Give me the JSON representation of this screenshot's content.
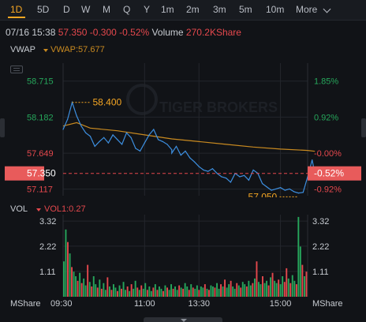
{
  "tabs": [
    "1D",
    "5D",
    "D",
    "W",
    "M",
    "Q",
    "Y",
    "1m",
    "2m",
    "3m",
    "5m",
    "10m",
    "More"
  ],
  "active_tab": "1D",
  "info": {
    "datetime": "07/16 15:38",
    "price": "57.350",
    "change": "-0.300",
    "change_pct": "-0.52%",
    "volume_label": "Volume",
    "volume_value": "270.2KShare"
  },
  "main_indicator": {
    "name": "VWAP",
    "value_label": "VWAP:57.677"
  },
  "sub_indicator": {
    "name": "VOL",
    "value_label": "VOL1:0.27"
  },
  "watermark": "TIGER BROKERS",
  "colors": {
    "up": "#26a65b",
    "down": "#e5484d",
    "price_line": "#3d8fe0",
    "vwap_line": "#c98a20",
    "accent": "#f5a623"
  },
  "chart_data": [
    {
      "type": "line",
      "title": "",
      "x_ticks": [
        "09:30",
        "11:00",
        "13:30",
        "15:00"
      ],
      "ylim": [
        57.02,
        58.98
      ],
      "left_ticks": [
        "58.715",
        "58.182",
        "57.649",
        "57.117"
      ],
      "right_ticks": [
        "1.85%",
        "0.92%",
        "-0.00%",
        "-0.92%"
      ],
      "previous_close": 57.65,
      "current_price_label": "57.350",
      "current_pct_label": "-0.52%",
      "annotations": [
        {
          "label": "58.400",
          "value": 58.4,
          "kind": "high"
        },
        {
          "label": "57.050",
          "value": 57.05,
          "kind": "low"
        }
      ],
      "series": [
        {
          "name": "Price",
          "x": [
            "09:30",
            "09:35",
            "09:40",
            "09:45",
            "09:50",
            "09:55",
            "10:00",
            "10:05",
            "10:10",
            "10:15",
            "10:20",
            "10:25",
            "10:30",
            "10:35",
            "10:40",
            "10:45",
            "10:50",
            "10:55",
            "11:00",
            "11:05",
            "11:10",
            "11:15",
            "11:20",
            "11:25",
            "11:30",
            "13:00",
            "13:05",
            "13:10",
            "13:15",
            "13:20",
            "13:25",
            "13:30",
            "13:35",
            "13:40",
            "13:45",
            "13:50",
            "13:55",
            "14:00",
            "14:05",
            "14:10",
            "14:15",
            "14:20",
            "14:25",
            "14:30",
            "14:35",
            "14:40",
            "14:45",
            "14:50",
            "14:55",
            "15:00",
            "15:05",
            "15:10",
            "15:15",
            "15:20",
            "15:25",
            "15:30",
            "15:35",
            "15:38"
          ],
          "values": [
            58.0,
            58.15,
            58.4,
            58.2,
            58.05,
            57.95,
            57.9,
            57.75,
            57.82,
            57.88,
            57.8,
            57.92,
            57.85,
            57.78,
            57.95,
            57.88,
            57.72,
            57.68,
            57.8,
            57.92,
            58.0,
            57.85,
            57.82,
            57.78,
            57.7,
            57.65,
            57.75,
            57.62,
            57.68,
            57.58,
            57.52,
            57.45,
            57.4,
            57.38,
            57.42,
            57.35,
            57.3,
            57.28,
            57.22,
            57.35,
            57.3,
            57.32,
            57.25,
            57.4,
            57.35,
            57.2,
            57.15,
            57.1,
            57.12,
            57.14,
            57.1,
            57.12,
            57.08,
            57.06,
            57.07,
            57.3,
            57.55,
            57.35
          ]
        },
        {
          "name": "VWAP",
          "x": [
            "09:30",
            "09:45",
            "10:00",
            "10:30",
            "11:00",
            "11:30",
            "13:30",
            "14:00",
            "14:30",
            "15:00",
            "15:30",
            "15:38"
          ],
          "values": [
            58.05,
            58.1,
            58.02,
            57.98,
            57.92,
            57.86,
            57.82,
            57.78,
            57.74,
            57.71,
            57.69,
            57.677
          ]
        }
      ]
    },
    {
      "type": "bar",
      "title": "",
      "ylabel": "MShare",
      "y_ticks": [
        "3.32",
        "2.22",
        "1.11"
      ],
      "ylim": [
        0,
        3.6
      ],
      "x_ticks": [
        "09:30",
        "11:00",
        "13:30",
        "15:00"
      ],
      "bars": [
        {
          "t": 0,
          "v": 1.55,
          "d": "up"
        },
        {
          "t": 1,
          "v": 2.95,
          "d": "up"
        },
        {
          "t": 2,
          "v": 2.4,
          "d": "down"
        },
        {
          "t": 3,
          "v": 1.9,
          "d": "up"
        },
        {
          "t": 4,
          "v": 1.3,
          "d": "down"
        },
        {
          "t": 5,
          "v": 1.1,
          "d": "up"
        },
        {
          "t": 6,
          "v": 0.9,
          "d": "up"
        },
        {
          "t": 7,
          "v": 0.7,
          "d": "down"
        },
        {
          "t": 8,
          "v": 1.05,
          "d": "up"
        },
        {
          "t": 9,
          "v": 0.6,
          "d": "down"
        },
        {
          "t": 10,
          "v": 0.8,
          "d": "up"
        },
        {
          "t": 11,
          "v": 0.5,
          "d": "up"
        },
        {
          "t": 12,
          "v": 1.4,
          "d": "down"
        },
        {
          "t": 13,
          "v": 0.65,
          "d": "up"
        },
        {
          "t": 14,
          "v": 0.45,
          "d": "down"
        },
        {
          "t": 15,
          "v": 0.9,
          "d": "up"
        },
        {
          "t": 16,
          "v": 0.55,
          "d": "up"
        },
        {
          "t": 17,
          "v": 0.4,
          "d": "down"
        },
        {
          "t": 18,
          "v": 0.75,
          "d": "up"
        },
        {
          "t": 19,
          "v": 0.35,
          "d": "down"
        },
        {
          "t": 20,
          "v": 0.6,
          "d": "up"
        },
        {
          "t": 21,
          "v": 0.3,
          "d": "up"
        },
        {
          "t": 22,
          "v": 0.85,
          "d": "down"
        },
        {
          "t": 23,
          "v": 0.45,
          "d": "up"
        },
        {
          "t": 24,
          "v": 0.3,
          "d": "down"
        },
        {
          "t": 25,
          "v": 0.55,
          "d": "up"
        },
        {
          "t": 26,
          "v": 0.4,
          "d": "up"
        },
        {
          "t": 27,
          "v": 0.25,
          "d": "down"
        },
        {
          "t": 28,
          "v": 0.5,
          "d": "up"
        },
        {
          "t": 29,
          "v": 0.35,
          "d": "down"
        },
        {
          "t": 30,
          "v": 0.65,
          "d": "up"
        },
        {
          "t": 31,
          "v": 0.3,
          "d": "up"
        },
        {
          "t": 32,
          "v": 0.45,
          "d": "down"
        },
        {
          "t": 33,
          "v": 0.25,
          "d": "up"
        },
        {
          "t": 34,
          "v": 0.55,
          "d": "down"
        },
        {
          "t": 35,
          "v": 0.35,
          "d": "up"
        },
        {
          "t": 36,
          "v": 0.7,
          "d": "up"
        },
        {
          "t": 37,
          "v": 0.4,
          "d": "down"
        },
        {
          "t": 38,
          "v": 0.3,
          "d": "up"
        },
        {
          "t": 39,
          "v": 0.5,
          "d": "down"
        },
        {
          "t": 40,
          "v": 0.35,
          "d": "up"
        },
        {
          "t": 41,
          "v": 0.6,
          "d": "up"
        },
        {
          "t": 42,
          "v": 0.3,
          "d": "down"
        },
        {
          "t": 43,
          "v": 0.45,
          "d": "up"
        },
        {
          "t": 44,
          "v": 0.25,
          "d": "up"
        },
        {
          "t": 45,
          "v": 0.4,
          "d": "down"
        },
        {
          "t": 46,
          "v": 0.55,
          "d": "up"
        },
        {
          "t": 47,
          "v": 0.3,
          "d": "down"
        },
        {
          "t": 48,
          "v": 0.45,
          "d": "up"
        },
        {
          "t": 49,
          "v": 0.35,
          "d": "up"
        },
        {
          "t": 50,
          "v": 0.25,
          "d": "down"
        },
        {
          "t": 51,
          "v": 0.5,
          "d": "up"
        },
        {
          "t": 52,
          "v": 0.4,
          "d": "down"
        },
        {
          "t": 53,
          "v": 0.3,
          "d": "up"
        },
        {
          "t": 54,
          "v": 0.55,
          "d": "up"
        },
        {
          "t": 55,
          "v": 0.35,
          "d": "down"
        },
        {
          "t": 56,
          "v": 0.45,
          "d": "up"
        },
        {
          "t": 57,
          "v": 0.3,
          "d": "up"
        },
        {
          "t": 58,
          "v": 0.5,
          "d": "down"
        },
        {
          "t": 59,
          "v": 0.4,
          "d": "up"
        },
        {
          "t": 60,
          "v": 0.35,
          "d": "down"
        },
        {
          "t": 61,
          "v": 0.6,
          "d": "up"
        },
        {
          "t": 62,
          "v": 0.45,
          "d": "up"
        },
        {
          "t": 63,
          "v": 0.3,
          "d": "down"
        },
        {
          "t": 64,
          "v": 0.55,
          "d": "up"
        },
        {
          "t": 65,
          "v": 0.4,
          "d": "down"
        },
        {
          "t": 66,
          "v": 0.35,
          "d": "up"
        },
        {
          "t": 67,
          "v": 0.5,
          "d": "up"
        },
        {
          "t": 68,
          "v": 0.3,
          "d": "down"
        },
        {
          "t": 69,
          "v": 0.45,
          "d": "up"
        },
        {
          "t": 70,
          "v": 0.4,
          "d": "up"
        },
        {
          "t": 71,
          "v": 0.55,
          "d": "down"
        },
        {
          "t": 72,
          "v": 0.35,
          "d": "up"
        },
        {
          "t": 73,
          "v": 0.3,
          "d": "down"
        },
        {
          "t": 74,
          "v": 0.5,
          "d": "up"
        },
        {
          "t": 75,
          "v": 0.45,
          "d": "up"
        },
        {
          "t": 76,
          "v": 0.4,
          "d": "down"
        },
        {
          "t": 77,
          "v": 0.6,
          "d": "up"
        },
        {
          "t": 78,
          "v": 0.35,
          "d": "up"
        },
        {
          "t": 79,
          "v": 0.55,
          "d": "down"
        },
        {
          "t": 80,
          "v": 0.45,
          "d": "up"
        },
        {
          "t": 81,
          "v": 0.75,
          "d": "down"
        },
        {
          "t": 82,
          "v": 0.4,
          "d": "up"
        },
        {
          "t": 83,
          "v": 0.55,
          "d": "up"
        },
        {
          "t": 84,
          "v": 0.7,
          "d": "down"
        },
        {
          "t": 85,
          "v": 0.45,
          "d": "up"
        },
        {
          "t": 86,
          "v": 0.35,
          "d": "up"
        },
        {
          "t": 87,
          "v": 0.6,
          "d": "down"
        },
        {
          "t": 88,
          "v": 0.5,
          "d": "up"
        },
        {
          "t": 89,
          "v": 0.4,
          "d": "down"
        },
        {
          "t": 90,
          "v": 0.65,
          "d": "up"
        },
        {
          "t": 91,
          "v": 0.55,
          "d": "up"
        },
        {
          "t": 92,
          "v": 0.45,
          "d": "down"
        },
        {
          "t": 93,
          "v": 0.7,
          "d": "up"
        },
        {
          "t": 94,
          "v": 0.5,
          "d": "up"
        },
        {
          "t": 95,
          "v": 0.6,
          "d": "down"
        },
        {
          "t": 96,
          "v": 0.8,
          "d": "up"
        },
        {
          "t": 97,
          "v": 1.55,
          "d": "down"
        },
        {
          "t": 98,
          "v": 0.65,
          "d": "up"
        },
        {
          "t": 99,
          "v": 0.55,
          "d": "up"
        },
        {
          "t": 100,
          "v": 0.9,
          "d": "down"
        },
        {
          "t": 101,
          "v": 0.6,
          "d": "up"
        },
        {
          "t": 102,
          "v": 0.7,
          "d": "up"
        },
        {
          "t": 103,
          "v": 0.5,
          "d": "down"
        },
        {
          "t": 104,
          "v": 0.85,
          "d": "up"
        },
        {
          "t": 105,
          "v": 1.05,
          "d": "down"
        },
        {
          "t": 106,
          "v": 0.7,
          "d": "up"
        },
        {
          "t": 107,
          "v": 0.6,
          "d": "up"
        },
        {
          "t": 108,
          "v": 0.75,
          "d": "down"
        },
        {
          "t": 109,
          "v": 0.55,
          "d": "up"
        },
        {
          "t": 110,
          "v": 0.9,
          "d": "up"
        },
        {
          "t": 111,
          "v": 0.65,
          "d": "down"
        },
        {
          "t": 112,
          "v": 1.25,
          "d": "down"
        },
        {
          "t": 113,
          "v": 0.8,
          "d": "up"
        },
        {
          "t": 114,
          "v": 0.6,
          "d": "down"
        },
        {
          "t": 115,
          "v": 0.95,
          "d": "up"
        },
        {
          "t": 116,
          "v": 0.7,
          "d": "up"
        },
        {
          "t": 117,
          "v": 0.55,
          "d": "down"
        },
        {
          "t": 118,
          "v": 3.5,
          "d": "up"
        },
        {
          "t": 119,
          "v": 2.2,
          "d": "up"
        },
        {
          "t": 120,
          "v": 1.4,
          "d": "down"
        },
        {
          "t": 121,
          "v": 0.9,
          "d": "up"
        },
        {
          "t": 122,
          "v": 1.1,
          "d": "down"
        }
      ]
    }
  ]
}
